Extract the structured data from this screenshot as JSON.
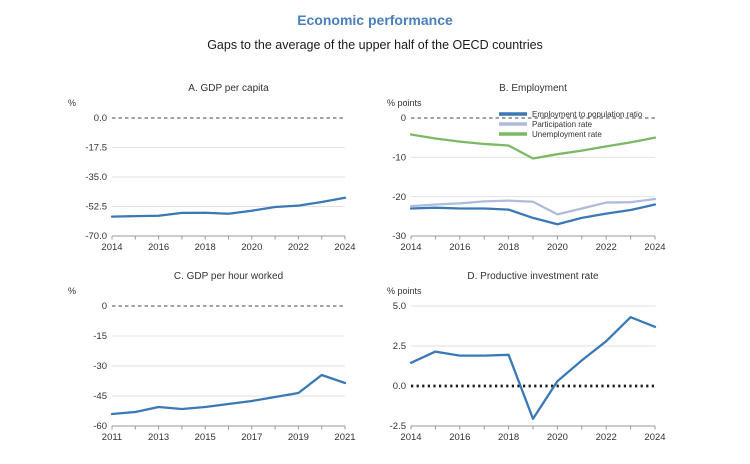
{
  "header": {
    "title": "Economic performance",
    "subtitle": "Gaps to the average of the upper half of the OECD countries"
  },
  "colors": {
    "accent_blue": "#4a7ebc",
    "line_blue": "#3a79b5",
    "line_light_blue": "#afbbdc",
    "line_green": "#7cb964",
    "grid": "#e2e2e2",
    "axis": "#999999",
    "zero": "#444444",
    "zero_bold": "#1a1a1a",
    "text": "#333333"
  },
  "chart_data": [
    {
      "type": "line",
      "title": "A. GDP per capita",
      "unit": "%",
      "x": [
        2014,
        2015,
        2016,
        2017,
        2018,
        2019,
        2020,
        2021,
        2022,
        2023,
        2024
      ],
      "x_tick_labels": [
        "2014",
        "2016",
        "2018",
        "2020",
        "2022",
        "2024"
      ],
      "ylim": [
        -70,
        0
      ],
      "y_ticks": [
        {
          "value": 0,
          "label": "0.0"
        },
        {
          "value": -17.5,
          "label": "-17.5"
        },
        {
          "value": -35,
          "label": "-35.0"
        },
        {
          "value": -52.5,
          "label": "-52.5"
        },
        {
          "value": -70,
          "label": "-70.0"
        }
      ],
      "zero_style": "dashed",
      "grid": true,
      "legend": "none",
      "series": [
        {
          "id": "gdp-per-capita",
          "name": "GDP per capita",
          "color": "#3a79b5",
          "values": [
            -58.5,
            -58.2,
            -58.0,
            -56.3,
            -56.2,
            -56.8,
            -55.0,
            -52.8,
            -52.0,
            -49.8,
            -47.3
          ]
        }
      ]
    },
    {
      "type": "line",
      "title": "B. Employment",
      "unit": "% points",
      "x": [
        2014,
        2015,
        2016,
        2017,
        2018,
        2019,
        2020,
        2021,
        2022,
        2023,
        2024
      ],
      "x_tick_labels": [
        "2014",
        "2016",
        "2018",
        "2020",
        "2022",
        "2024"
      ],
      "ylim": [
        -30,
        0
      ],
      "y_ticks": [
        {
          "value": 0,
          "label": "0"
        },
        {
          "value": -10,
          "label": "-10"
        },
        {
          "value": -20,
          "label": "-20"
        },
        {
          "value": -30,
          "label": "-30"
        }
      ],
      "zero_style": "dashed",
      "grid": true,
      "legend": "top-inside",
      "series": [
        {
          "id": "employment-to-population-ratio",
          "name": "Employment to population ratio",
          "color": "#3a79b5",
          "values": [
            -23.0,
            -22.8,
            -23.0,
            -23.0,
            -23.3,
            -25.4,
            -27.0,
            -25.4,
            -24.3,
            -23.4,
            -22.0
          ]
        },
        {
          "id": "participation-rate",
          "name": "Participation rate",
          "color": "#afbbdc",
          "values": [
            -22.4,
            -22.0,
            -21.7,
            -21.2,
            -21.0,
            -21.3,
            -24.5,
            -23.0,
            -21.5,
            -21.4,
            -20.6
          ]
        },
        {
          "id": "unemployment-rate",
          "name": "Unemployment rate",
          "color": "#7cb964",
          "values": [
            -4.2,
            -5.2,
            -6.0,
            -6.6,
            -7.0,
            -10.3,
            -9.2,
            -8.3,
            -7.2,
            -6.2,
            -5.0
          ]
        }
      ]
    },
    {
      "type": "line",
      "title": "C. GDP per hour worked",
      "unit": "%",
      "x": [
        2011,
        2012,
        2013,
        2014,
        2015,
        2016,
        2017,
        2018,
        2019,
        2020,
        2021
      ],
      "x_tick_labels": [
        "2011",
        "2013",
        "2015",
        "2017",
        "2019",
        "2021"
      ],
      "ylim": [
        -60,
        0
      ],
      "y_ticks": [
        {
          "value": 0,
          "label": "0"
        },
        {
          "value": -15,
          "label": "-15"
        },
        {
          "value": -30,
          "label": "-30"
        },
        {
          "value": -45,
          "label": "-45"
        },
        {
          "value": -60,
          "label": "-60"
        }
      ],
      "zero_style": "dashed",
      "grid": true,
      "legend": "none",
      "series": [
        {
          "id": "gdp-per-hour-worked",
          "name": "GDP per hour worked",
          "color": "#3a79b5",
          "values": [
            -54.0,
            -53.0,
            -50.5,
            -51.5,
            -50.5,
            -49.0,
            -47.5,
            -45.5,
            -43.5,
            -34.5,
            -38.5
          ]
        }
      ]
    },
    {
      "type": "line",
      "title": "D. Productive investment rate",
      "unit": "% points",
      "x": [
        2014,
        2015,
        2016,
        2017,
        2018,
        2019,
        2020,
        2021,
        2022,
        2023,
        2024
      ],
      "x_tick_labels": [
        "2014",
        "2016",
        "2018",
        "2020",
        "2022",
        "2024"
      ],
      "ylim": [
        -2.5,
        5.0
      ],
      "y_ticks": [
        {
          "value": 5,
          "label": "5.0"
        },
        {
          "value": 2.5,
          "label": "2.5"
        },
        {
          "value": 0,
          "label": "0.0"
        },
        {
          "value": -2.5,
          "label": "-2.5"
        }
      ],
      "zero_style": "dotted-bold",
      "grid": true,
      "legend": "none",
      "series": [
        {
          "id": "productive-investment-rate",
          "name": "Productive investment rate",
          "color": "#3a79b5",
          "values": [
            1.45,
            2.15,
            1.9,
            1.9,
            1.95,
            -2.05,
            0.3,
            1.6,
            2.8,
            4.3,
            3.7
          ]
        }
      ]
    }
  ]
}
